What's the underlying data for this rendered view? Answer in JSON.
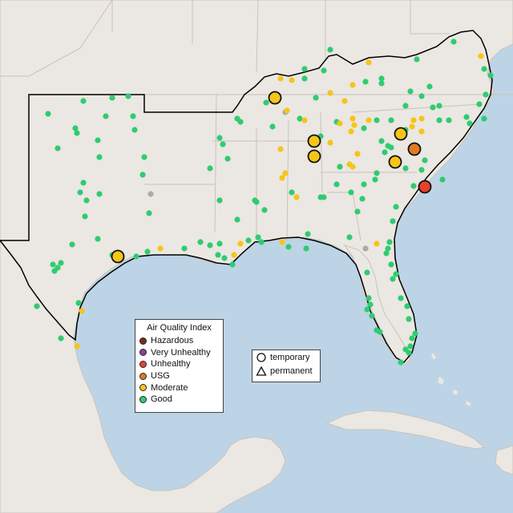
{
  "legend": {
    "title": "Air Quality Index",
    "categories": [
      {
        "label": "Hazardous",
        "color": "#7e2a1c"
      },
      {
        "label": "Very Unhealthy",
        "color": "#8f3f97"
      },
      {
        "label": "Unhealthy",
        "color": "#e8412e"
      },
      {
        "label": "USG",
        "color": "#e07a24"
      },
      {
        "label": "Moderate",
        "color": "#f5c518"
      },
      {
        "label": "Good",
        "color": "#2ecc71"
      }
    ]
  },
  "monitor_types": {
    "items": [
      {
        "label": "temporary",
        "icon": "circle-icon"
      },
      {
        "label": "permanent",
        "icon": "triangle-icon"
      }
    ]
  },
  "colors": {
    "ocean": "#bcd4e6",
    "land": "#ebe7e2",
    "boundary": "#c9c2bc",
    "region_outline": "#000000",
    "unavailable": "#aaaaaa"
  }
}
